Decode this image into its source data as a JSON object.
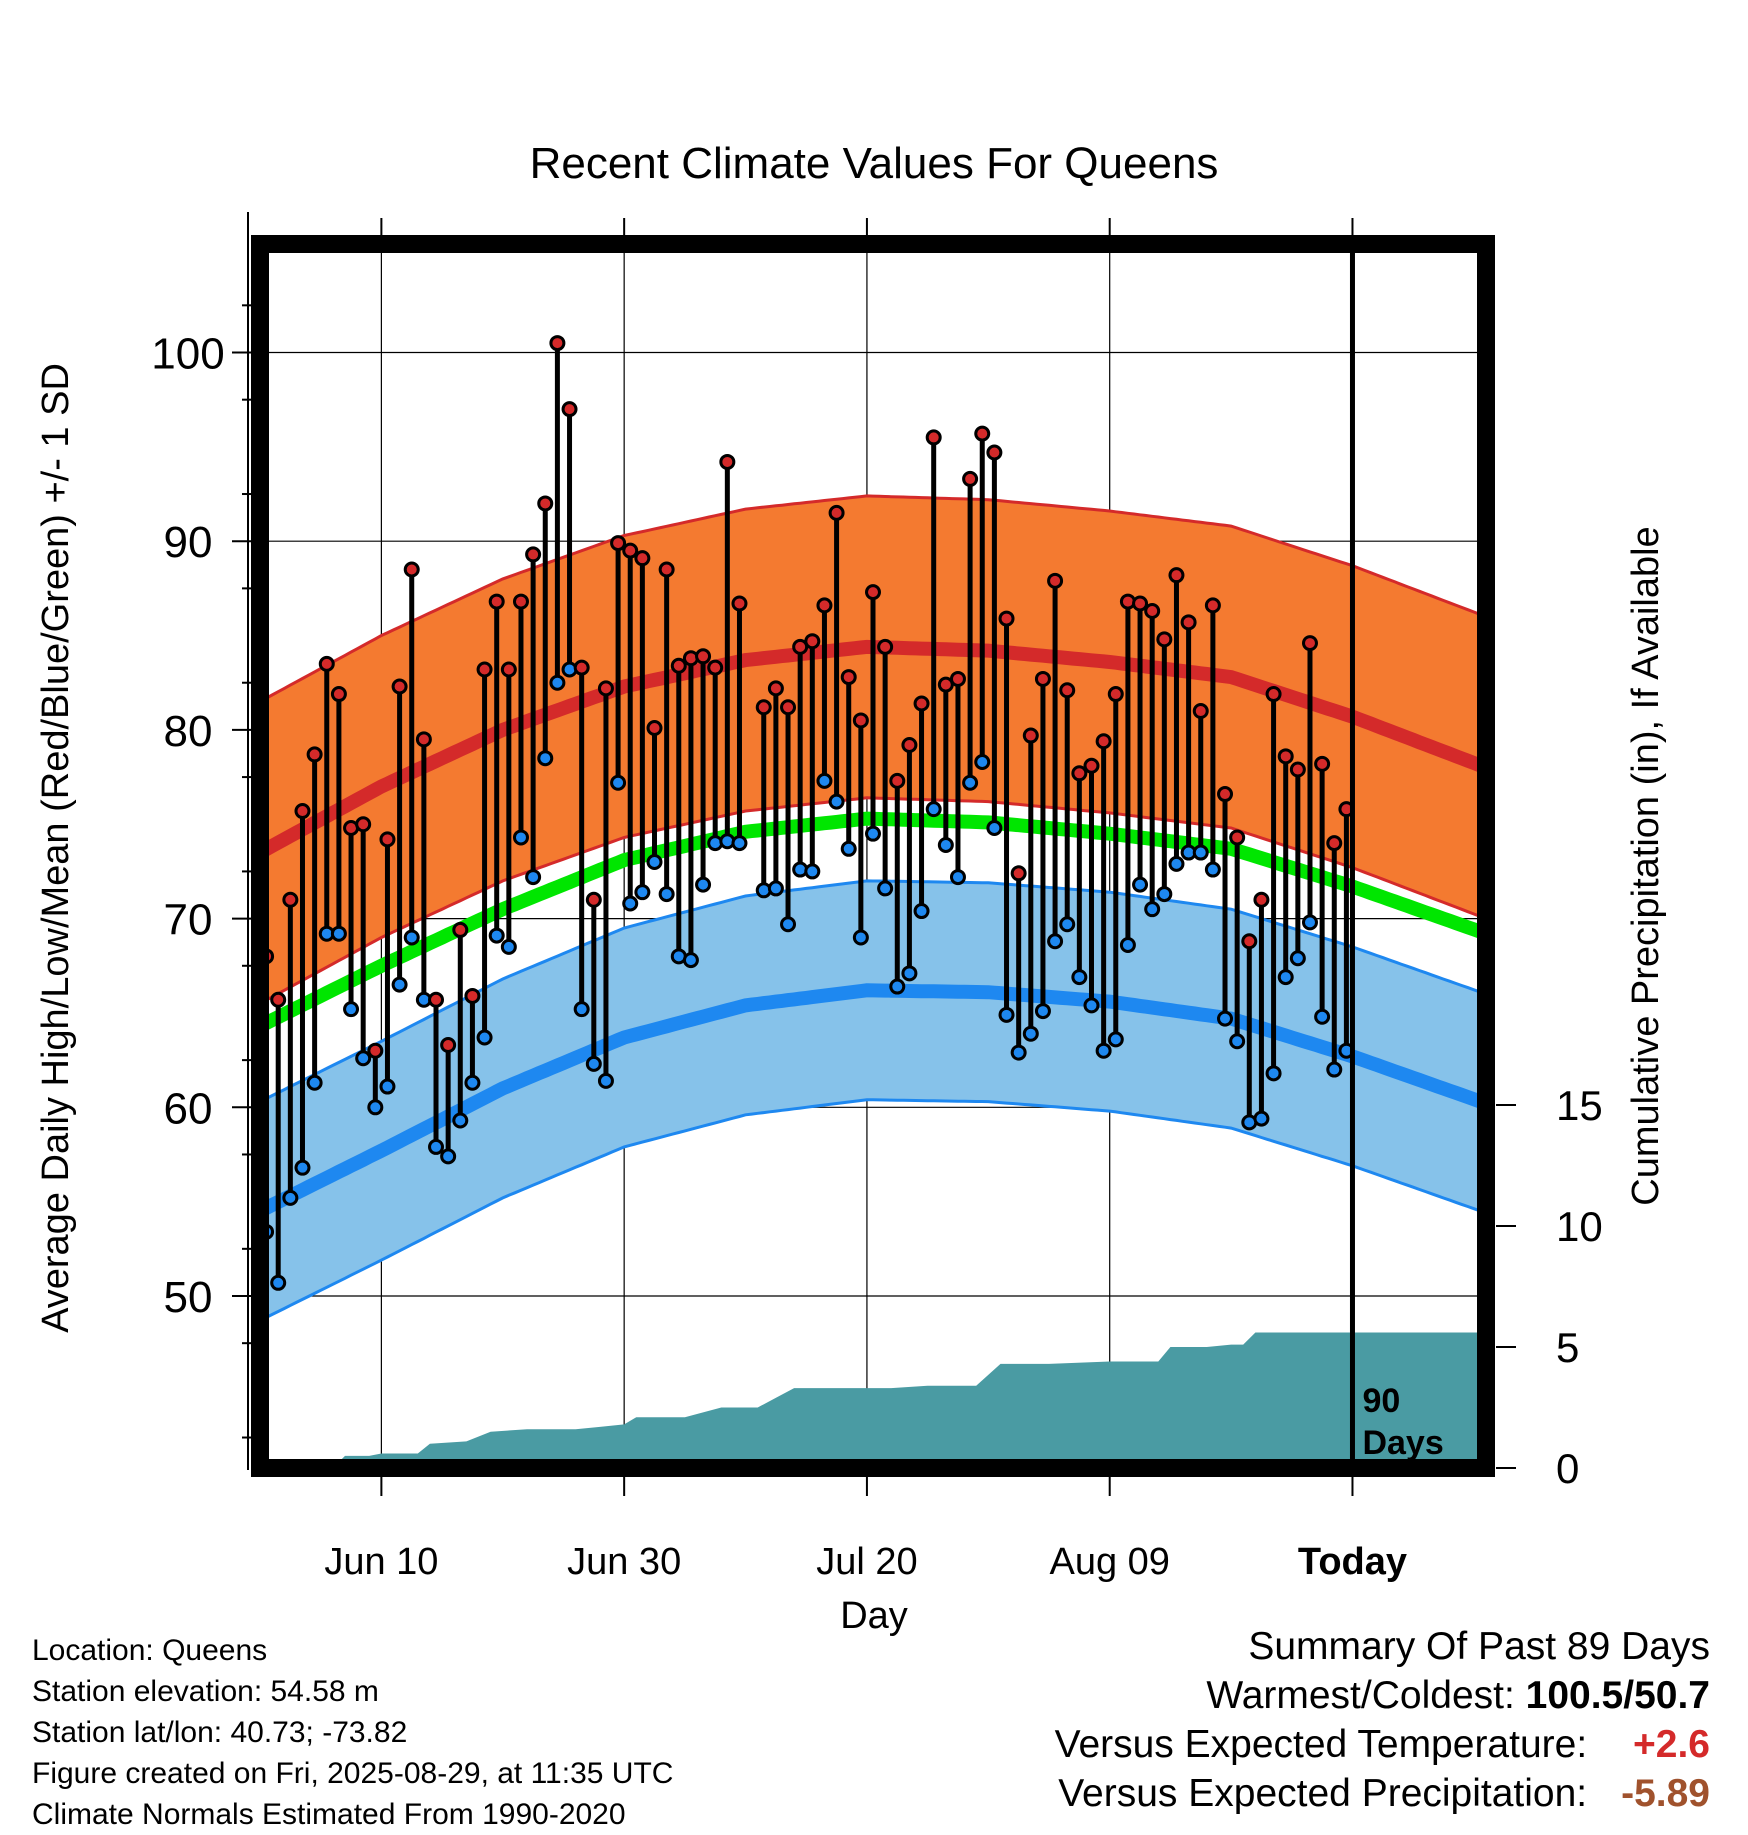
{
  "chart_data": {
    "type": "line",
    "title": "Recent Climate Values For Queens",
    "xlabel": "Day",
    "ylabel": "Average Daily High/Low/Mean (Red/Blue/Green) +/- 1 SD",
    "y2label": "Cumulative Precipitation (in), If Available",
    "x_tick_labels": [
      "Jun 10",
      "Jun 30",
      "Jul 20",
      "Aug 09",
      "Today"
    ],
    "y_ticks": [
      50,
      60,
      70,
      80,
      90,
      100
    ],
    "y2_ticks": [
      0,
      5,
      10,
      15
    ],
    "ylim": [
      41,
      106
    ],
    "y2lim": [
      0,
      45
    ],
    "x_range_days": [
      0,
      101
    ],
    "today_day": 90,
    "today_label": [
      "90",
      "Days"
    ],
    "colors": {
      "high": "#d42a2a",
      "high_band": "#f47a30",
      "low": "#1e88f0",
      "low_band": "#86c2ea",
      "mean": "#00e600",
      "precip": "#4a9ba3",
      "high_dot": "#d42a2a",
      "low_dot": "#1e88f0"
    },
    "series": [
      {
        "name": "high",
        "values": [
          68.0,
          65.7,
          71.0,
          75.7,
          78.7,
          83.5,
          81.9,
          74.8,
          75.0,
          63.0,
          74.2,
          82.3,
          88.5,
          79.5,
          65.7,
          63.3,
          69.4,
          65.9,
          83.2,
          86.8,
          83.2,
          86.8,
          89.3,
          92.0,
          100.5,
          97.0,
          83.3,
          71.0,
          82.2,
          89.9,
          89.5,
          89.1,
          80.1,
          88.5,
          83.4,
          83.8,
          83.9,
          83.3,
          94.2,
          86.7,
          0,
          81.2,
          82.2,
          81.2,
          84.4,
          84.7,
          86.6,
          91.5,
          82.8,
          80.5,
          87.3,
          84.4,
          77.3,
          79.2,
          81.4,
          95.5,
          82.4,
          82.7,
          93.3,
          95.7,
          94.7,
          85.9,
          72.4,
          79.7,
          82.7,
          87.9,
          82.1,
          77.7,
          78.1,
          79.4,
          81.9,
          86.8,
          86.7,
          86.3,
          84.8,
          88.2,
          85.7,
          81.0,
          86.6,
          76.6,
          74.3,
          68.8,
          71.0,
          81.9,
          78.6,
          77.9,
          84.6,
          78.2,
          74.0,
          75.8
        ],
        "note": "0 marks a missing day"
      },
      {
        "name": "low",
        "values": [
          53.4,
          50.7,
          55.2,
          56.8,
          61.3,
          69.2,
          69.2,
          65.2,
          62.6,
          60.0,
          61.1,
          66.5,
          69.0,
          65.7,
          57.9,
          57.4,
          59.3,
          61.3,
          63.7,
          69.1,
          68.5,
          74.3,
          72.2,
          78.5,
          82.5,
          83.2,
          65.2,
          62.3,
          61.4,
          77.2,
          70.8,
          71.4,
          73.0,
          71.3,
          68.0,
          67.8,
          71.8,
          74.0,
          74.1,
          74.0,
          0,
          71.5,
          71.6,
          69.7,
          72.6,
          72.5,
          77.3,
          76.2,
          73.7,
          69.0,
          74.5,
          71.6,
          66.4,
          67.1,
          70.4,
          75.8,
          73.9,
          72.2,
          77.2,
          78.3,
          74.8,
          64.9,
          62.9,
          63.9,
          65.1,
          68.8,
          69.7,
          66.9,
          65.4,
          63.0,
          63.6,
          68.6,
          71.8,
          70.5,
          71.3,
          72.9,
          73.5,
          73.5,
          72.6,
          64.7,
          63.5,
          59.2,
          59.4,
          61.8,
          66.9,
          67.9,
          69.8,
          64.8,
          62.0,
          63.0
        ],
        "note": "0 marks a missing day"
      }
    ],
    "normals": {
      "days": [
        0,
        10,
        20,
        30,
        40,
        50,
        60,
        70,
        80,
        90,
        101
      ],
      "high_mean": [
        73.5,
        77.0,
        80.0,
        82.3,
        83.7,
        84.4,
        84.2,
        83.6,
        82.8,
        80.7,
        78.0
      ],
      "high_sd": 8.0,
      "mean_mean": [
        64.3,
        67.5,
        70.5,
        73.1,
        74.6,
        75.3,
        75.1,
        74.5,
        73.7,
        71.7,
        69.2
      ],
      "low_mean": [
        54.5,
        57.7,
        61.0,
        63.7,
        65.4,
        66.2,
        66.1,
        65.6,
        64.7,
        62.7,
        60.2
      ],
      "low_sd": 5.8
    },
    "precip_cumulative": [
      [
        0,
        0.0
      ],
      [
        6,
        0.0
      ],
      [
        7,
        0.5
      ],
      [
        9,
        0.5
      ],
      [
        10,
        0.6
      ],
      [
        13,
        0.6
      ],
      [
        14,
        1.0
      ],
      [
        17,
        1.1
      ],
      [
        19,
        1.5
      ],
      [
        22,
        1.6
      ],
      [
        26,
        1.6
      ],
      [
        28,
        1.7
      ],
      [
        30,
        1.8
      ],
      [
        31,
        2.1
      ],
      [
        35,
        2.1
      ],
      [
        38,
        2.5
      ],
      [
        41,
        2.5
      ],
      [
        44,
        3.3
      ],
      [
        52,
        3.3
      ],
      [
        55,
        3.4
      ],
      [
        59,
        3.4
      ],
      [
        61,
        4.3
      ],
      [
        65,
        4.3
      ],
      [
        70,
        4.4
      ],
      [
        74,
        4.4
      ],
      [
        75,
        5.0
      ],
      [
        78,
        5.0
      ],
      [
        80,
        5.1
      ],
      [
        81,
        5.1
      ],
      [
        82,
        5.6
      ],
      [
        101,
        5.6
      ]
    ]
  },
  "info": {
    "location": "Location: Queens",
    "elevation": "Station elevation: 54.58 m",
    "latlon": "Station lat/lon: 40.73; -73.82",
    "created": "Figure created on Fri, 2025-08-29, at 11:35 UTC",
    "normals": "Climate Normals Estimated From 1990-2020"
  },
  "summary": {
    "heading": "Summary Of Past 89 Days",
    "warm_cold_label": "Warmest/Coldest:",
    "warm_cold_value": "100.5/50.7",
    "temp_label": "Versus Expected Temperature:",
    "temp_value": "+2.6",
    "temp_color": "#d42a2a",
    "precip_label": "Versus Expected Precipitation:",
    "precip_value": "-5.89",
    "precip_color": "#a0522d"
  }
}
